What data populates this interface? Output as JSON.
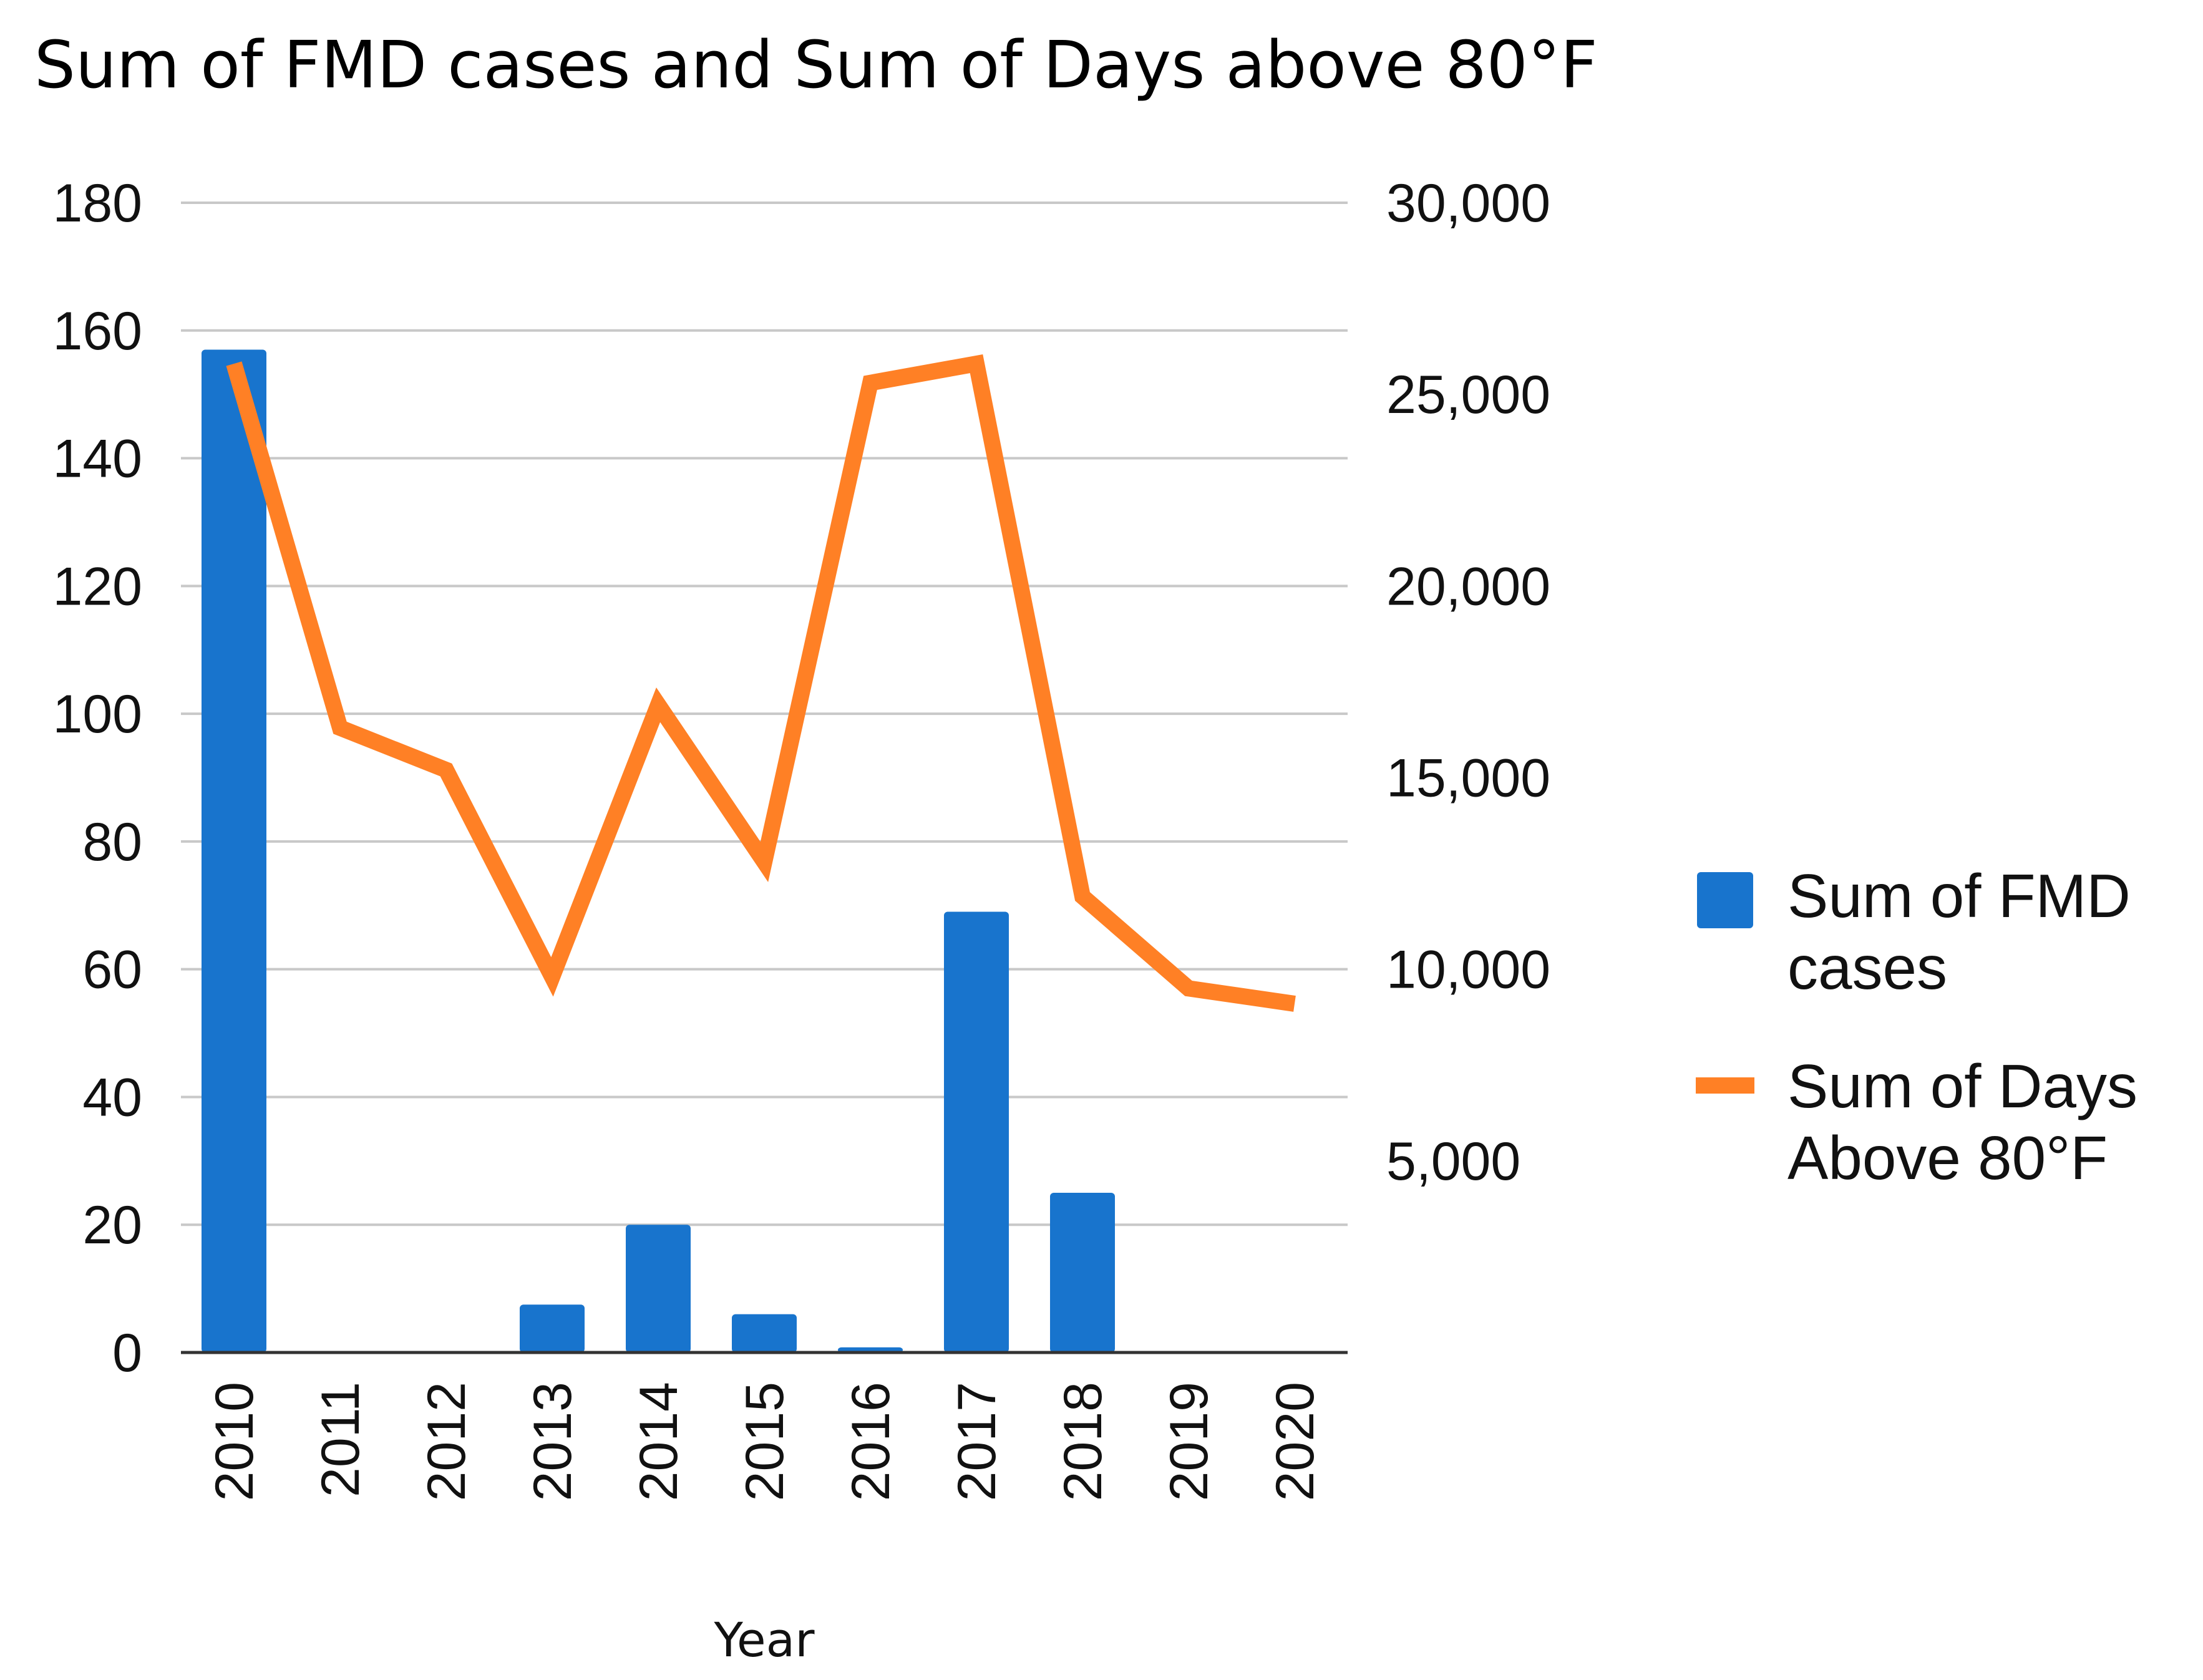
{
  "chart_data": {
    "type": "bar+line",
    "title": "Sum of FMD cases and Sum of Days above 80°F",
    "xlabel": "Year",
    "categories": [
      "2010",
      "2011",
      "2012",
      "2013",
      "2014",
      "2015",
      "2016",
      "2017",
      "2018",
      "2019",
      "2020"
    ],
    "y_left": {
      "min": 0,
      "max": 180,
      "ticks": [
        0,
        20,
        40,
        60,
        80,
        100,
        120,
        140,
        160,
        180
      ],
      "tick_labels": [
        "0",
        "20",
        "40",
        "60",
        "80",
        "100",
        "120",
        "140",
        "160",
        "180"
      ]
    },
    "y_right": {
      "min": 0,
      "max": 30000,
      "ticks": [
        5000,
        10000,
        15000,
        20000,
        25000,
        30000
      ],
      "tick_labels": [
        "5,000",
        "10,000",
        "15,000",
        "20,000",
        "25,000",
        "30,000"
      ]
    },
    "grid": true,
    "legend_position": "right",
    "series": [
      {
        "name": "Sum of FMD cases",
        "legend_lines": [
          "Sum of FMD",
          "cases"
        ],
        "type": "bar",
        "axis": "left",
        "color": "#1874CD",
        "values": [
          157,
          0,
          0,
          7.5,
          20,
          6,
          0.8,
          69,
          25,
          0,
          0
        ]
      },
      {
        "name": "Sum of Days Above 80°F",
        "legend_lines": [
          "Sum of Days",
          "Above 80°F"
        ],
        "type": "line",
        "axis": "right",
        "color": "#FF8025",
        "values": [
          25800,
          16300,
          15200,
          9800,
          16900,
          12800,
          25300,
          25800,
          11900,
          9500,
          9100
        ]
      }
    ]
  }
}
